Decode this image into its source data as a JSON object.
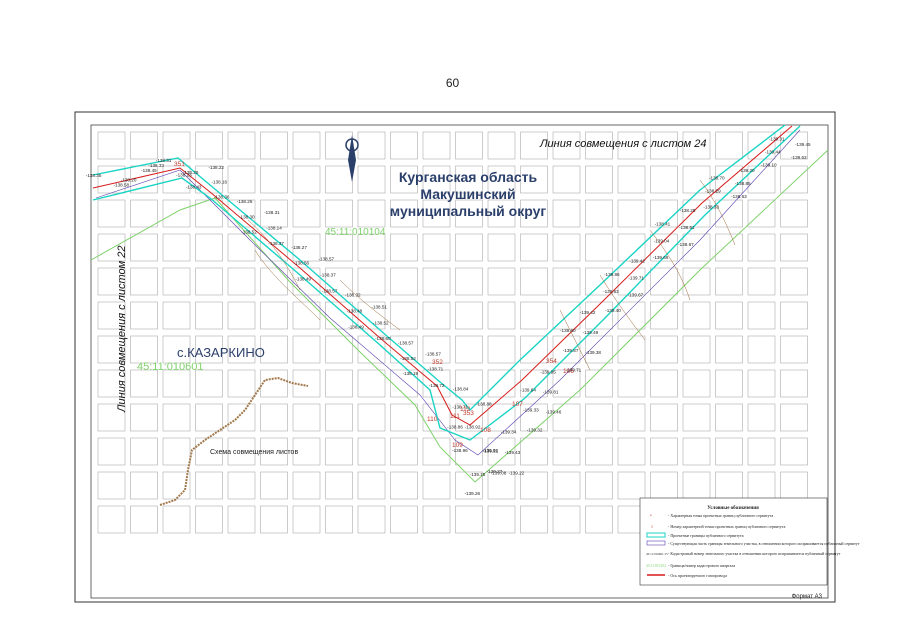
{
  "page_number": "60",
  "region_title": [
    "Курганская область",
    "Макушинский",
    "муниципальный округ"
  ],
  "match_line_top": "Линия совмещения с листом 24",
  "match_line_left": "Линия совмещения с листом 22",
  "settlement": "с.КАЗАРКИНО",
  "cadastral_quarters": [
    "45:11:010104",
    "45:11:010601"
  ],
  "scheme_label": "Схема совмещения листов",
  "format_label": "Формат А3",
  "point_numbers": [
    "351",
    "352",
    "110",
    "111",
    "112",
    "353",
    "109",
    "108",
    "107",
    "106",
    "354"
  ],
  "elevations": [
    "-138.35",
    "-138.58",
    "-138.45",
    "-138.20",
    "-138.33",
    "-138.23",
    "-138.31",
    "-138.28",
    "-138.22",
    "-138.43",
    "-138.16",
    "-138.26",
    "-138.36",
    "-138.30",
    "-138.31",
    "-138.52",
    "-138.14",
    "-138.27",
    "-138.37",
    "-138.56",
    "-138.57",
    "-138.49",
    "-138.37",
    "-138.32",
    "-138.57",
    "-138.48",
    "-138.51",
    "-138.49",
    "-138.52",
    "-138.57",
    "-138.60",
    "-138.52",
    "-138.57",
    "-138.19",
    "-138.71",
    "-138.84",
    "-138.72",
    "-138.71",
    "-138.88",
    "-138.86",
    "-138.92",
    "-138.92",
    "-138.96",
    "-139.15",
    "-139.08",
    "-139.26",
    "-139.27",
    "-139.22",
    "-139.21",
    "-139.43",
    "-139.32",
    "-139.34",
    "-139.33",
    "-139.46",
    "-139.64",
    "-139.81",
    "-139.71",
    "-139.95",
    "-139.87",
    "-139.38",
    "-139.60",
    "-139.49",
    "-139.40",
    "-139.42",
    "-139.63",
    "-139.67",
    "-139.86",
    "-139.71",
    "-139.66",
    "-139.42",
    "-139.04",
    "-138.67",
    "-138.41",
    "-138.51",
    "-138.33",
    "-138.25",
    "-138.29",
    "-138.63",
    "-138.70",
    "-138.85",
    "-139.10",
    "-139.20",
    "-139.44",
    "-139.63",
    "-139.31",
    "-139.45"
  ],
  "legend": {
    "title": "Условные обозначения",
    "items": [
      "- Характерная точка проектных границ публичного сервитута",
      "- Номер характерной точки проектных границ публичного сервитута",
      "- Проектные границы публичного сервитута",
      "- Существующая часть границы земельного участка, в отношении которого испрашивается публичный сервитут",
      "- Кадастровый номер земельного участка в отношении которого испрашивается публичный сервитут",
      "- Граница/номер кадастрового квартала",
      "- Ось проектируемого газопровода"
    ],
    "samples": [
      "45:11:010601:15",
      "45:11:010104"
    ]
  },
  "colors": {
    "corridor": "#19d4c4",
    "pipeline": "#d81b1b",
    "cadastral": "#7fd26b",
    "parcel": "#5a3fb0",
    "title": "#2b3f6b"
  }
}
